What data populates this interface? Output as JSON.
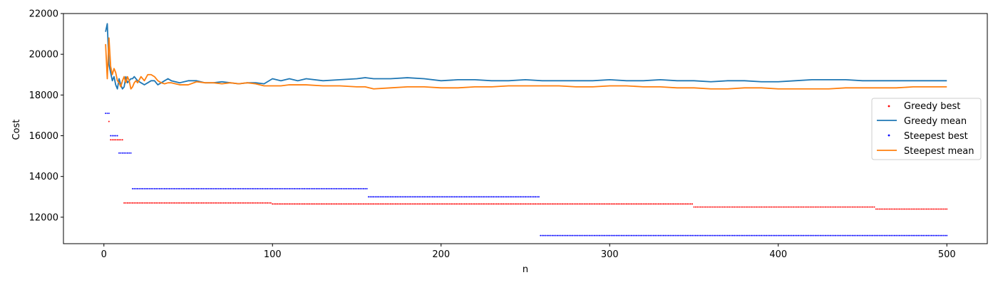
{
  "chart_data": {
    "type": "line",
    "title": "",
    "xlabel": "n",
    "ylabel": "Cost",
    "xlim": [
      -24,
      524
    ],
    "ylim": [
      10700,
      22000
    ],
    "xticks": [
      0,
      100,
      200,
      300,
      400,
      500
    ],
    "yticks": [
      12000,
      14000,
      16000,
      18000,
      20000,
      22000
    ],
    "tick_labels": {
      "x": [
        "0",
        "100",
        "200",
        "300",
        "400",
        "500"
      ],
      "y": [
        "12000",
        "14000",
        "16000",
        "18000",
        "20000",
        "22000"
      ]
    },
    "grid": false,
    "legend": {
      "position": "right",
      "entries": [
        "Greedy best",
        "Greedy mean",
        "Steepest best",
        "Steepest mean"
      ]
    },
    "series": [
      {
        "name": "Greedy best",
        "kind": "points",
        "color": "#ff0000",
        "steps": [
          {
            "from": 3,
            "to": 3,
            "value": 16700
          },
          {
            "from": 4,
            "to": 11,
            "value": 15800
          },
          {
            "from": 12,
            "to": 99,
            "value": 12700
          },
          {
            "from": 100,
            "to": 349,
            "value": 12650
          },
          {
            "from": 350,
            "to": 457,
            "value": 12500
          },
          {
            "from": 458,
            "to": 500,
            "value": 12400
          }
        ]
      },
      {
        "name": "Greedy mean",
        "kind": "line",
        "color": "#1f77b4",
        "x": [
          1,
          2,
          3,
          4,
          5,
          6,
          7,
          8,
          9,
          10,
          11,
          12,
          13,
          14,
          15,
          16,
          17,
          18,
          19,
          20,
          22,
          24,
          26,
          28,
          30,
          32,
          34,
          36,
          38,
          40,
          45,
          50,
          55,
          60,
          65,
          70,
          75,
          80,
          85,
          90,
          95,
          100,
          105,
          110,
          115,
          120,
          130,
          140,
          150,
          155,
          160,
          170,
          180,
          190,
          200,
          210,
          220,
          230,
          240,
          250,
          260,
          270,
          280,
          290,
          300,
          310,
          320,
          330,
          340,
          350,
          360,
          370,
          380,
          390,
          400,
          410,
          420,
          430,
          440,
          450,
          460,
          470,
          480,
          490,
          500
        ],
        "values": [
          21100,
          21500,
          19500,
          19100,
          18700,
          18900,
          18500,
          18300,
          18800,
          18500,
          18300,
          18400,
          18900,
          18600,
          18700,
          18800,
          18800,
          18900,
          18800,
          18700,
          18600,
          18500,
          18600,
          18700,
          18700,
          18500,
          18600,
          18700,
          18800,
          18700,
          18600,
          18700,
          18700,
          18600,
          18600,
          18650,
          18600,
          18550,
          18600,
          18600,
          18550,
          18800,
          18700,
          18800,
          18700,
          18800,
          18700,
          18750,
          18800,
          18850,
          18800,
          18800,
          18850,
          18800,
          18700,
          18750,
          18750,
          18700,
          18700,
          18750,
          18700,
          18700,
          18700,
          18700,
          18750,
          18700,
          18700,
          18750,
          18700,
          18700,
          18650,
          18700,
          18700,
          18650,
          18650,
          18700,
          18750,
          18750,
          18750,
          18700,
          18700,
          18700,
          18700,
          18700,
          18700
        ]
      },
      {
        "name": "Steepest best",
        "kind": "points",
        "color": "#0000ff",
        "steps": [
          {
            "from": 1,
            "to": 3,
            "value": 17100
          },
          {
            "from": 4,
            "to": 8,
            "value": 16000
          },
          {
            "from": 9,
            "to": 16,
            "value": 15150
          },
          {
            "from": 17,
            "to": 156,
            "value": 13400
          },
          {
            "from": 157,
            "to": 258,
            "value": 13000
          },
          {
            "from": 259,
            "to": 500,
            "value": 11100
          }
        ]
      },
      {
        "name": "Steepest mean",
        "kind": "line",
        "color": "#ff7f0e",
        "x": [
          1,
          2,
          3,
          4,
          5,
          6,
          7,
          8,
          9,
          10,
          11,
          12,
          13,
          14,
          15,
          16,
          17,
          18,
          19,
          20,
          22,
          24,
          26,
          28,
          30,
          32,
          34,
          36,
          38,
          40,
          45,
          50,
          55,
          60,
          65,
          70,
          75,
          80,
          85,
          90,
          95,
          100,
          105,
          110,
          115,
          120,
          130,
          140,
          150,
          155,
          160,
          170,
          180,
          190,
          200,
          210,
          220,
          230,
          240,
          250,
          260,
          270,
          280,
          290,
          300,
          310,
          320,
          330,
          340,
          350,
          360,
          370,
          380,
          390,
          400,
          410,
          420,
          430,
          440,
          450,
          460,
          470,
          480,
          490,
          500
        ],
        "values": [
          20500,
          18800,
          20800,
          19400,
          19000,
          19300,
          19100,
          18700,
          18600,
          18400,
          18700,
          18900,
          18600,
          18900,
          18700,
          18300,
          18400,
          18600,
          18700,
          18600,
          18900,
          18700,
          19000,
          19000,
          18900,
          18700,
          18600,
          18550,
          18600,
          18600,
          18500,
          18500,
          18650,
          18600,
          18600,
          18550,
          18600,
          18550,
          18600,
          18550,
          18450,
          18450,
          18450,
          18500,
          18500,
          18500,
          18450,
          18450,
          18400,
          18400,
          18300,
          18350,
          18400,
          18400,
          18350,
          18350,
          18400,
          18400,
          18450,
          18450,
          18450,
          18450,
          18400,
          18400,
          18450,
          18450,
          18400,
          18400,
          18350,
          18350,
          18300,
          18300,
          18350,
          18350,
          18300,
          18300,
          18300,
          18300,
          18350,
          18350,
          18350,
          18350,
          18400,
          18400,
          18400
        ]
      }
    ]
  }
}
